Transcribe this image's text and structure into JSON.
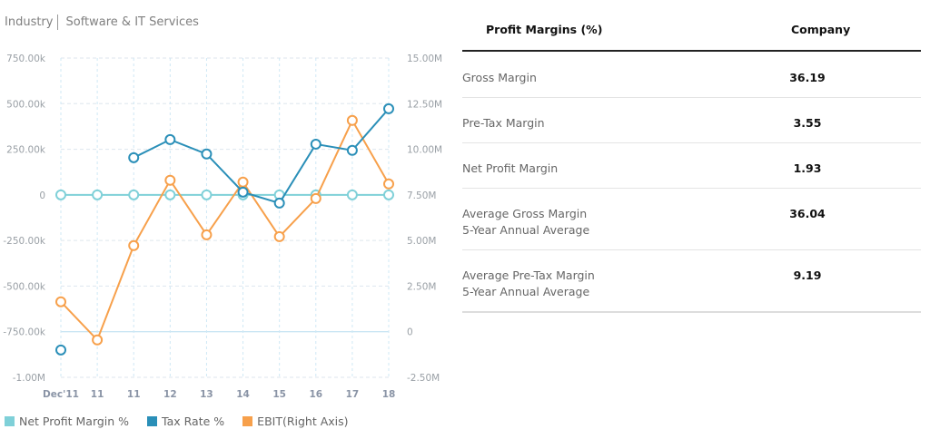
{
  "header": {
    "label": "Industry",
    "value": "Software & IT Services"
  },
  "colors": {
    "net_profit_margin": "#7fd0d8",
    "tax_rate": "#2a8fb8",
    "ebit": "#f7a04b"
  },
  "chart_data": {
    "type": "line",
    "categories": [
      "Dec'11",
      "11",
      "11",
      "12",
      "13",
      "14",
      "15",
      "16",
      "17",
      "18"
    ],
    "left_axis": {
      "ticks": [
        "750.00k",
        "500.00k",
        "250.00k",
        "0",
        "-250.00k",
        "-500.00k",
        "-750.00k",
        "-1.00M"
      ],
      "range": [
        -1000000,
        750000
      ]
    },
    "right_axis": {
      "ticks": [
        "15.00M",
        "12.50M",
        "10.00M",
        "7.50M",
        "5.00M",
        "2.50M",
        "0",
        "-2.50M"
      ],
      "range": [
        -2500000,
        15000000
      ]
    },
    "grid": true,
    "legend_position": "bottom-left",
    "series": [
      {
        "name": "Net Profit Margin %",
        "axis": "left",
        "values": [
          0,
          0,
          0,
          0,
          0,
          0,
          0,
          0,
          0,
          0
        ]
      },
      {
        "name": "Tax Rate %",
        "axis": "left",
        "values": [
          -850000,
          null,
          204000,
          303000,
          224000,
          15000,
          -45000,
          278000,
          244000,
          472000
        ]
      },
      {
        "name": "EBIT(Right Axis)",
        "axis": "right",
        "values": [
          1640000,
          -450000,
          4720000,
          8300000,
          5310000,
          8200000,
          5210000,
          7300000,
          11580000,
          8100000
        ]
      }
    ]
  },
  "table": {
    "header": {
      "metric": "Profit Margins (%)",
      "company": "Company"
    },
    "rows": [
      {
        "label": "Gross Margin",
        "sub": "",
        "value": "36.19"
      },
      {
        "label": "Pre-Tax Margin",
        "sub": "",
        "value": "3.55"
      },
      {
        "label": "Net Profit Margin",
        "sub": "",
        "value": "1.93"
      },
      {
        "label": "Average Gross Margin",
        "sub": "5-Year Annual Average",
        "value": "36.04"
      },
      {
        "label": "Average Pre-Tax Margin",
        "sub": "5-Year Annual Average",
        "value": "9.19"
      }
    ]
  }
}
